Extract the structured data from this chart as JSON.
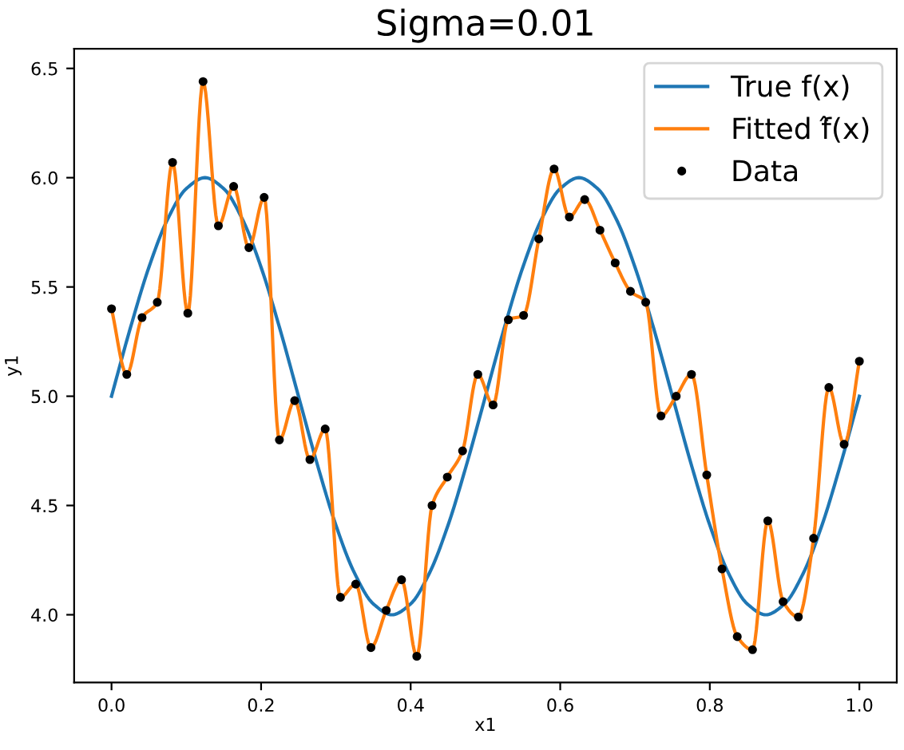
{
  "chart_data": {
    "type": "line",
    "title": "Sigma=0.01",
    "xlabel": "x1",
    "ylabel": "y1",
    "xlim": [
      -0.05,
      1.05
    ],
    "xticks": [
      {
        "value": 0,
        "label": "0.0"
      },
      {
        "value": 0.2,
        "label": "0.2"
      },
      {
        "value": 0.4,
        "label": "0.4"
      },
      {
        "value": 0.6,
        "label": "0.6"
      },
      {
        "value": 0.8,
        "label": "0.8"
      },
      {
        "value": 1,
        "label": "1.0"
      }
    ],
    "ylim": [
      3.69,
      6.59
    ],
    "yticks": [
      {
        "value": 4,
        "label": "4.0"
      },
      4.5,
      {
        "value": 5,
        "label": "5.0"
      },
      5.5,
      {
        "value": 6,
        "label": "6.0"
      },
      6.5
    ],
    "grid": false,
    "legend": "top right",
    "series": [
      {
        "name": "True f(x)",
        "color": "#1f77b4",
        "marker": "none",
        "x": [
          0,
          0.025,
          0.05,
          0.075,
          0.1,
          0.125,
          0.15,
          0.175,
          0.2,
          0.225,
          0.25,
          0.275,
          0.3,
          0.325,
          0.35,
          0.375,
          0.4,
          0.425,
          0.45,
          0.475,
          0.5,
          0.525,
          0.55,
          0.575,
          0.6,
          0.625,
          0.65,
          0.675,
          0.7,
          0.725,
          0.75,
          0.775,
          0.8,
          0.825,
          0.85,
          0.875,
          0.9,
          0.925,
          0.95,
          0.975,
          1.0
        ],
        "values": [
          5.0,
          5.31,
          5.59,
          5.81,
          5.95,
          6.0,
          5.95,
          5.81,
          5.59,
          5.31,
          5.0,
          4.69,
          4.41,
          4.19,
          4.05,
          4.0,
          4.05,
          4.19,
          4.41,
          4.69,
          5.0,
          5.31,
          5.59,
          5.81,
          5.95,
          6.0,
          5.95,
          5.81,
          5.59,
          5.31,
          5.0,
          4.69,
          4.41,
          4.19,
          4.05,
          4.0,
          4.05,
          4.19,
          4.41,
          4.69,
          5.0
        ]
      },
      {
        "name": "Fitted f̂(x)",
        "color": "#ff7f0e",
        "marker": "none",
        "x": [
          0,
          0.0204,
          0.0408,
          0.0612,
          0.0816,
          0.102,
          0.1224,
          0.1429,
          0.1633,
          0.1837,
          0.2041,
          0.2245,
          0.2449,
          0.2653,
          0.2857,
          0.3061,
          0.3265,
          0.3469,
          0.3673,
          0.3878,
          0.4082,
          0.4286,
          0.449,
          0.4694,
          0.4898,
          0.5102,
          0.5306,
          0.551,
          0.5714,
          0.5918,
          0.6122,
          0.6327,
          0.6531,
          0.6735,
          0.6939,
          0.7143,
          0.7347,
          0.7551,
          0.7755,
          0.7959,
          0.8163,
          0.8367,
          0.8571,
          0.8776,
          0.898,
          0.9184,
          0.9388,
          0.9592,
          0.9796,
          1.0
        ],
        "values": [
          5.4,
          5.1,
          5.36,
          5.43,
          6.07,
          5.38,
          6.44,
          5.78,
          5.96,
          5.68,
          5.91,
          4.8,
          4.98,
          4.71,
          4.85,
          4.08,
          4.14,
          3.85,
          4.02,
          4.16,
          3.81,
          4.5,
          4.63,
          4.75,
          5.1,
          4.96,
          5.35,
          5.37,
          5.72,
          6.04,
          5.82,
          5.9,
          5.76,
          5.61,
          5.48,
          5.43,
          4.91,
          5.0,
          5.1,
          4.64,
          4.21,
          3.9,
          3.84,
          4.43,
          4.06,
          3.99,
          4.35,
          5.04,
          4.78,
          5.16
        ]
      },
      {
        "name": "Data",
        "type": "scatter",
        "color": "#000000",
        "marker": "circle",
        "x": [
          0,
          0.0204,
          0.0408,
          0.0612,
          0.0816,
          0.102,
          0.1224,
          0.1429,
          0.1633,
          0.1837,
          0.2041,
          0.2245,
          0.2449,
          0.2653,
          0.2857,
          0.3061,
          0.3265,
          0.3469,
          0.3673,
          0.3878,
          0.4082,
          0.4286,
          0.449,
          0.4694,
          0.4898,
          0.5102,
          0.5306,
          0.551,
          0.5714,
          0.5918,
          0.6122,
          0.6327,
          0.6531,
          0.6735,
          0.6939,
          0.7143,
          0.7347,
          0.7551,
          0.7755,
          0.7959,
          0.8163,
          0.8367,
          0.8571,
          0.8776,
          0.898,
          0.9184,
          0.9388,
          0.9592,
          0.9796,
          1.0
        ],
        "values": [
          5.4,
          5.1,
          5.36,
          5.43,
          6.07,
          5.38,
          6.44,
          5.78,
          5.96,
          5.68,
          5.91,
          4.8,
          4.98,
          4.71,
          4.85,
          4.08,
          4.14,
          3.85,
          4.02,
          4.16,
          3.81,
          4.5,
          4.63,
          4.75,
          5.1,
          4.96,
          5.35,
          5.37,
          5.72,
          6.04,
          5.82,
          5.9,
          5.76,
          5.61,
          5.48,
          5.43,
          4.91,
          5.0,
          5.1,
          4.64,
          4.21,
          3.9,
          3.84,
          4.43,
          4.06,
          3.99,
          4.35,
          5.04,
          4.78,
          5.16
        ]
      }
    ]
  }
}
